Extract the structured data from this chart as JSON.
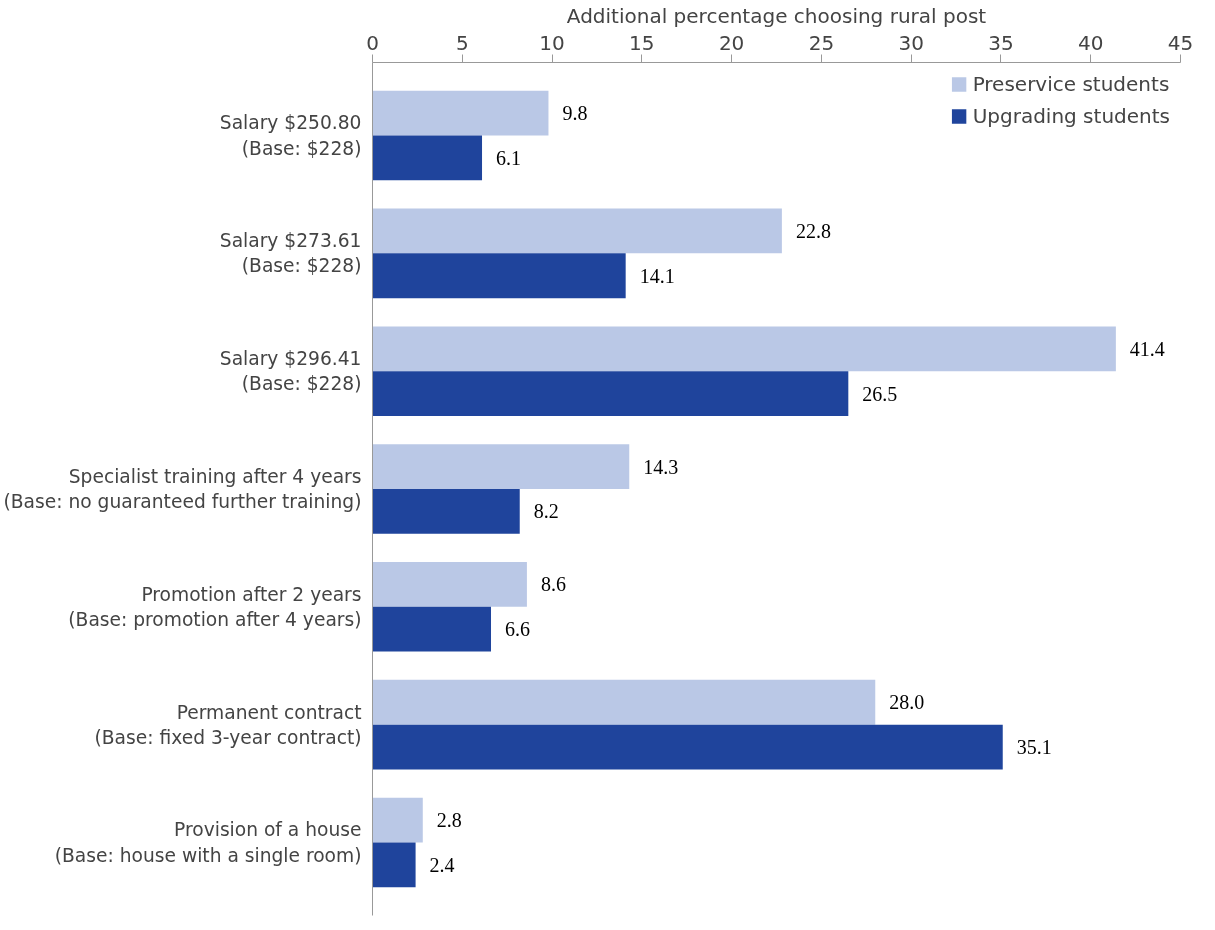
{
  "chart_data": {
    "type": "bar",
    "orientation": "horizontal",
    "xlabel": "Additional percentage choosing rural post",
    "categories": [
      "Salary $250.80\n(Base: $228)",
      "Salary $273.61\n(Base: $228)",
      "Salary $296.41\n(Base: $228)",
      "Specialist training after 4 years\n(Base: no guaranteed further training)",
      "Promotion after 2 years\n(Base: promotion after 4 years)",
      "Permanent contract\n(Base: fixed 3-year contract)",
      "Provision of a house\n(Base: house with a single room)"
    ],
    "series": [
      {
        "name": "Preservice students",
        "color": "#bac8e6",
        "values": [
          9.8,
          22.8,
          41.4,
          14.3,
          8.6,
          28.0,
          2.8
        ],
        "value_labels": [
          "9.8",
          "22.8",
          "41.4",
          "14.3",
          "8.6",
          "28.0",
          "2.8"
        ]
      },
      {
        "name": "Upgrading students",
        "color": "#1f449c",
        "values": [
          6.1,
          14.1,
          26.5,
          8.2,
          6.6,
          35.1,
          2.4
        ],
        "value_labels": [
          "6.1",
          "14.1",
          "26.5",
          "8.2",
          "6.6",
          "35.1",
          "2.4"
        ]
      }
    ],
    "xlim": [
      0,
      45
    ],
    "xticks": [
      0,
      5,
      10,
      15,
      20,
      25,
      30,
      35,
      40,
      45
    ],
    "grid": false,
    "legend": "top right"
  }
}
